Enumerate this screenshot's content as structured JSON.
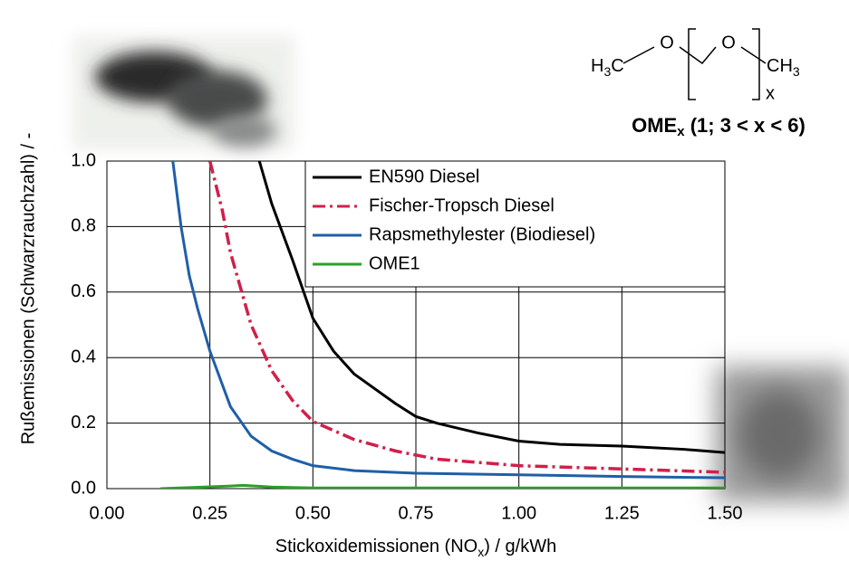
{
  "chart_data": {
    "type": "line",
    "x_label": [
      "Stickoxidemissionen (NO",
      "x",
      ") / g/kWh"
    ],
    "y_label": "Rußemissionen (Schwarzrauchzahl) / -",
    "xlim": [
      0,
      1.5
    ],
    "ylim": [
      0,
      1.0
    ],
    "xticks": [
      {
        "value": 0,
        "label": "0.00"
      },
      {
        "value": 0.25,
        "label": "0.25"
      },
      {
        "value": 0.5,
        "label": "0.50"
      },
      {
        "value": 0.75,
        "label": "0.75"
      },
      {
        "value": 1.0,
        "label": "1.00"
      },
      {
        "value": 1.25,
        "label": "1.25"
      },
      {
        "value": 1.5,
        "label": "1.50"
      }
    ],
    "yticks": [
      {
        "value": 0,
        "label": "0.0"
      },
      0.2,
      0.4,
      0.6,
      0.8,
      {
        "value": 1.0,
        "label": "1.0"
      }
    ],
    "grid": true,
    "legend": "top-right",
    "series": [
      {
        "name": "EN590 Diesel",
        "color": "#000000",
        "dash": "solid",
        "x": [
          0.37,
          0.4,
          0.45,
          0.5,
          0.55,
          0.6,
          0.7,
          0.75,
          0.8,
          0.9,
          1.0,
          1.1,
          1.25,
          1.4,
          1.5
        ],
        "values": [
          1.0,
          0.87,
          0.7,
          0.52,
          0.42,
          0.35,
          0.26,
          0.22,
          0.2,
          0.17,
          0.145,
          0.135,
          0.13,
          0.12,
          0.11
        ]
      },
      {
        "name": "Fischer-Tropsch Diesel",
        "color": "#d0204a",
        "dash": "dashdot",
        "x": [
          0.25,
          0.28,
          0.3,
          0.35,
          0.4,
          0.45,
          0.5,
          0.6,
          0.7,
          0.8,
          0.9,
          1.0,
          1.25,
          1.5
        ],
        "values": [
          1.0,
          0.85,
          0.72,
          0.5,
          0.36,
          0.27,
          0.205,
          0.15,
          0.115,
          0.09,
          0.08,
          0.07,
          0.06,
          0.05
        ]
      },
      {
        "name": "Rapsmethylester (Biodiesel)",
        "color": "#1f5fa8",
        "dash": "solid",
        "x": [
          0.16,
          0.18,
          0.2,
          0.22,
          0.25,
          0.3,
          0.35,
          0.4,
          0.45,
          0.5,
          0.6,
          0.75,
          1.0,
          1.25,
          1.5
        ],
        "values": [
          1.0,
          0.8,
          0.65,
          0.55,
          0.42,
          0.25,
          0.16,
          0.115,
          0.09,
          0.07,
          0.055,
          0.047,
          0.042,
          0.037,
          0.033
        ]
      },
      {
        "name": "OME1",
        "color": "#2aa02a",
        "dash": "solid",
        "x": [
          0.13,
          0.2,
          0.3,
          0.33,
          0.4,
          0.5,
          1.0,
          1.5
        ],
        "values": [
          0.0,
          0.003,
          0.008,
          0.01,
          0.005,
          0.002,
          0.002,
          0.002
        ]
      }
    ]
  },
  "formula": {
    "left": [
      "H",
      "3",
      "C"
    ],
    "oxygen": [
      "O",
      "O"
    ],
    "right": [
      "CH",
      "3"
    ],
    "repeat": "x"
  },
  "caption": [
    "OME",
    "x",
    " (1; 3 < x < 6)"
  ]
}
